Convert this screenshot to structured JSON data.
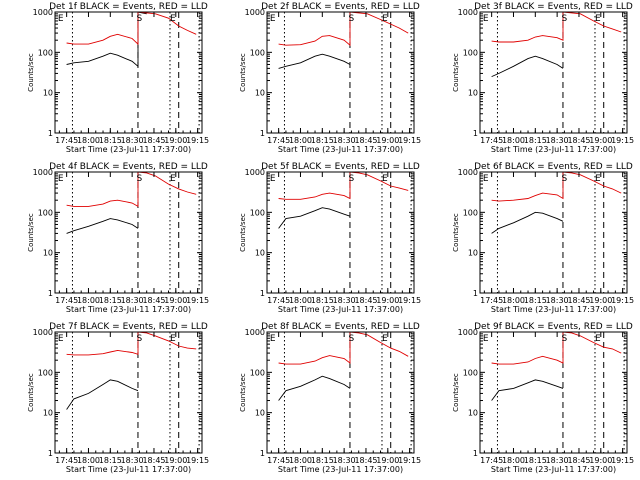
{
  "chart_data": [
    {
      "type": "line",
      "title": "Det 1f BLACK = Events, RED = LLD",
      "xlabel": "Start Time (23-Jul-11 17:37:00)",
      "ylabel": "Counts/sec",
      "yscale": "log",
      "ylim": [
        1,
        1000
      ],
      "x_tick_labels": [
        "17:45",
        "18:00",
        "18:15",
        "18:30",
        "18:45",
        "19:00",
        "19:15"
      ],
      "y_tick_labels": [
        "1",
        "10",
        "100",
        "1000"
      ],
      "markers": [
        "E",
        "S",
        "E"
      ],
      "series": [
        {
          "color": "#000000",
          "x": [
            "17:45",
            "17:50",
            "18:00",
            "18:10",
            "18:15",
            "18:20",
            "18:30",
            "18:34",
            "18:34",
            "18:40"
          ],
          "values": [
            50,
            55,
            60,
            80,
            95,
            85,
            60,
            45,
            1000,
            900
          ]
        },
        {
          "color": "#e00000",
          "x": [
            "17:45",
            "17:50",
            "18:00",
            "18:10",
            "18:15",
            "18:20",
            "18:30",
            "18:34",
            "18:34",
            "18:40",
            "18:46",
            "18:55",
            "19:02",
            "19:08",
            "19:14"
          ],
          "values": [
            170,
            160,
            160,
            200,
            250,
            280,
            220,
            160,
            1000,
            950,
            900,
            700,
            450,
            350,
            280
          ]
        }
      ]
    },
    {
      "type": "line",
      "title": "Det 2f BLACK = Events, RED = LLD",
      "xlabel": "Start Time (23-Jul-11 17:37:00)",
      "ylabel": "Counts/sec",
      "yscale": "log",
      "ylim": [
        1,
        1000
      ],
      "x_tick_labels": [
        "17:45",
        "18:00",
        "18:15",
        "18:30",
        "18:45",
        "19:00",
        "19:15"
      ],
      "y_tick_labels": [
        "1",
        "10",
        "100",
        "1000"
      ],
      "markers": [
        "E",
        "S",
        "E"
      ],
      "series": [
        {
          "color": "#000000",
          "x": [
            "17:45",
            "17:50",
            "18:00",
            "18:10",
            "18:15",
            "18:20",
            "18:30",
            "18:34"
          ],
          "values": [
            40,
            45,
            55,
            80,
            90,
            80,
            60,
            50
          ]
        },
        {
          "color": "#e00000",
          "x": [
            "17:45",
            "17:50",
            "18:00",
            "18:10",
            "18:15",
            "18:20",
            "18:30",
            "18:34",
            "18:34",
            "18:40",
            "18:46",
            "18:55",
            "19:02",
            "19:08",
            "19:14"
          ],
          "values": [
            160,
            150,
            155,
            190,
            250,
            260,
            200,
            150,
            1000,
            950,
            900,
            650,
            500,
            400,
            300
          ]
        }
      ]
    },
    {
      "type": "line",
      "title": "Det 3f BLACK = Events, RED = LLD",
      "xlabel": "Start Time (23-Jul-11 17:37:00)",
      "ylabel": "Counts/sec",
      "yscale": "log",
      "ylim": [
        1,
        1000
      ],
      "x_tick_labels": [
        "17:45",
        "18:00",
        "18:15",
        "18:30",
        "18:45",
        "19:00",
        "19:15"
      ],
      "y_tick_labels": [
        "1",
        "10",
        "100",
        "1000"
      ],
      "markers": [
        "E",
        "S",
        "E"
      ],
      "series": [
        {
          "color": "#000000",
          "x": [
            "17:45",
            "17:50",
            "18:00",
            "18:10",
            "18:15",
            "18:20",
            "18:30",
            "18:34"
          ],
          "values": [
            25,
            30,
            45,
            70,
            80,
            70,
            50,
            40
          ]
        },
        {
          "color": "#e00000",
          "x": [
            "17:45",
            "17:50",
            "18:00",
            "18:10",
            "18:15",
            "18:20",
            "18:30",
            "18:34",
            "18:34",
            "18:40",
            "18:46",
            "18:55",
            "19:02",
            "19:08",
            "19:14"
          ],
          "values": [
            190,
            180,
            180,
            200,
            240,
            260,
            230,
            200,
            1000,
            950,
            900,
            600,
            450,
            380,
            320
          ]
        }
      ]
    },
    {
      "type": "line",
      "title": "Det 4f BLACK = Events, RED = LLD",
      "xlabel": "Start Time (23-Jul-11 17:37:00)",
      "ylabel": "Counts/sec",
      "yscale": "log",
      "ylim": [
        1,
        1000
      ],
      "x_tick_labels": [
        "17:45",
        "18:00",
        "18:15",
        "18:30",
        "18:45",
        "19:00",
        "19:15"
      ],
      "y_tick_labels": [
        "1",
        "10",
        "100",
        "1000"
      ],
      "markers": [
        "E",
        "S",
        "E"
      ],
      "series": [
        {
          "color": "#000000",
          "x": [
            "17:45",
            "17:50",
            "18:00",
            "18:10",
            "18:15",
            "18:20",
            "18:30",
            "18:34"
          ],
          "values": [
            30,
            35,
            45,
            60,
            70,
            65,
            50,
            40
          ]
        },
        {
          "color": "#e00000",
          "x": [
            "17:45",
            "17:50",
            "18:00",
            "18:10",
            "18:15",
            "18:20",
            "18:30",
            "18:34",
            "18:34",
            "18:40",
            "18:46",
            "18:55",
            "19:02",
            "19:08",
            "19:14"
          ],
          "values": [
            150,
            140,
            140,
            160,
            190,
            200,
            170,
            140,
            1000,
            950,
            800,
            500,
            380,
            320,
            280
          ]
        }
      ]
    },
    {
      "type": "line",
      "title": "Det 5f BLACK = Events, RED = LLD",
      "xlabel": "Start Time (23-Jul-11 17:37:00)",
      "ylabel": "Counts/sec",
      "yscale": "log",
      "ylim": [
        1,
        1000
      ],
      "x_tick_labels": [
        "17:45",
        "18:00",
        "18:15",
        "18:30",
        "18:45",
        "19:00",
        "19:15"
      ],
      "y_tick_labels": [
        "1",
        "10",
        "100",
        "1000"
      ],
      "markers": [
        "E",
        "S",
        "E"
      ],
      "series": [
        {
          "color": "#000000",
          "x": [
            "17:45",
            "17:50",
            "18:00",
            "18:10",
            "18:15",
            "18:20",
            "18:30",
            "18:34"
          ],
          "values": [
            40,
            70,
            80,
            110,
            130,
            120,
            90,
            80
          ]
        },
        {
          "color": "#e00000",
          "x": [
            "17:45",
            "17:50",
            "18:00",
            "18:10",
            "18:15",
            "18:20",
            "18:30",
            "18:34",
            "18:34",
            "18:40",
            "18:46",
            "18:55",
            "19:02",
            "19:08",
            "19:14"
          ],
          "values": [
            220,
            210,
            210,
            240,
            280,
            300,
            260,
            220,
            1000,
            950,
            850,
            600,
            450,
            400,
            350
          ]
        }
      ]
    },
    {
      "type": "line",
      "title": "Det 6f BLACK = Events, RED = LLD",
      "xlabel": "Start Time (23-Jul-11 17:37:00)",
      "ylabel": "Counts/sec",
      "yscale": "log",
      "ylim": [
        1,
        1000
      ],
      "x_tick_labels": [
        "17:45",
        "18:00",
        "18:15",
        "18:30",
        "18:45",
        "19:00",
        "19:15"
      ],
      "y_tick_labels": [
        "1",
        "10",
        "100",
        "1000"
      ],
      "markers": [
        "E",
        "S",
        "E"
      ],
      "series": [
        {
          "color": "#000000",
          "x": [
            "17:45",
            "17:50",
            "18:00",
            "18:10",
            "18:15",
            "18:20",
            "18:30",
            "18:34"
          ],
          "values": [
            30,
            40,
            55,
            80,
            100,
            95,
            70,
            60
          ]
        },
        {
          "color": "#e00000",
          "x": [
            "17:45",
            "17:50",
            "18:00",
            "18:10",
            "18:15",
            "18:20",
            "18:30",
            "18:34",
            "18:34",
            "18:40",
            "18:46",
            "18:55",
            "19:02",
            "19:08",
            "19:14"
          ],
          "values": [
            200,
            190,
            200,
            220,
            260,
            300,
            270,
            220,
            1000,
            950,
            850,
            600,
            450,
            380,
            300
          ]
        }
      ]
    },
    {
      "type": "line",
      "title": "Det 7f BLACK = Events, RED = LLD",
      "xlabel": "Start Time (23-Jul-11 17:37:00)",
      "ylabel": "Counts/sec",
      "yscale": "log",
      "ylim": [
        1,
        1000
      ],
      "x_tick_labels": [
        "17:45",
        "18:00",
        "18:15",
        "18:30",
        "18:45",
        "19:00",
        "19:15"
      ],
      "y_tick_labels": [
        "1",
        "10",
        "100",
        "1000"
      ],
      "markers": [
        "E",
        "S",
        "E"
      ],
      "series": [
        {
          "color": "#000000",
          "x": [
            "17:45",
            "17:50",
            "18:00",
            "18:10",
            "18:15",
            "18:20",
            "18:30",
            "18:34"
          ],
          "values": [
            12,
            22,
            30,
            50,
            65,
            60,
            40,
            35
          ]
        },
        {
          "color": "#e00000",
          "x": [
            "17:45",
            "17:50",
            "18:00",
            "18:10",
            "18:15",
            "18:20",
            "18:30",
            "18:34",
            "18:34",
            "18:40",
            "18:46",
            "18:55",
            "19:02",
            "19:08",
            "19:14"
          ],
          "values": [
            280,
            270,
            270,
            290,
            320,
            350,
            310,
            280,
            1000,
            950,
            800,
            600,
            450,
            400,
            380
          ]
        }
      ]
    },
    {
      "type": "line",
      "title": "Det 8f BLACK = Events, RED = LLD",
      "xlabel": "Start Time (23-Jul-11 17:37:00)",
      "ylabel": "Counts/sec",
      "yscale": "log",
      "ylim": [
        1,
        1000
      ],
      "x_tick_labels": [
        "17:45",
        "18:00",
        "18:15",
        "18:30",
        "18:45",
        "19:00",
        "19:15"
      ],
      "y_tick_labels": [
        "1",
        "10",
        "100",
        "1000"
      ],
      "markers": [
        "E",
        "S",
        "E"
      ],
      "series": [
        {
          "color": "#000000",
          "x": [
            "17:45",
            "17:50",
            "18:00",
            "18:10",
            "18:15",
            "18:20",
            "18:30",
            "18:34"
          ],
          "values": [
            20,
            35,
            45,
            65,
            80,
            70,
            50,
            40
          ]
        },
        {
          "color": "#e00000",
          "x": [
            "17:45",
            "17:50",
            "18:00",
            "18:10",
            "18:15",
            "18:20",
            "18:30",
            "18:34",
            "18:34",
            "18:40",
            "18:46",
            "18:55",
            "19:02",
            "19:08",
            "19:14"
          ],
          "values": [
            170,
            160,
            160,
            190,
            230,
            260,
            220,
            170,
            1000,
            950,
            850,
            550,
            400,
            330,
            250
          ]
        }
      ]
    },
    {
      "type": "line",
      "title": "Det 9f BLACK = Events, RED = LLD",
      "xlabel": "Start Time (23-Jul-11 17:37:00)",
      "ylabel": "Counts/sec",
      "yscale": "log",
      "ylim": [
        1,
        1000
      ],
      "x_tick_labels": [
        "17:45",
        "18:00",
        "18:15",
        "18:30",
        "18:45",
        "19:00",
        "19:15"
      ],
      "y_tick_labels": [
        "1",
        "10",
        "100",
        "1000"
      ],
      "markers": [
        "E",
        "S",
        "E"
      ],
      "series": [
        {
          "color": "#000000",
          "x": [
            "17:45",
            "17:50",
            "18:00",
            "18:10",
            "18:15",
            "18:20",
            "18:30",
            "18:34"
          ],
          "values": [
            20,
            35,
            40,
            55,
            65,
            60,
            45,
            40
          ]
        },
        {
          "color": "#e00000",
          "x": [
            "17:45",
            "17:50",
            "18:00",
            "18:10",
            "18:15",
            "18:20",
            "18:30",
            "18:34",
            "18:34",
            "18:40",
            "18:46",
            "18:55",
            "19:02",
            "19:08",
            "19:14"
          ],
          "values": [
            170,
            160,
            160,
            180,
            220,
            250,
            200,
            170,
            1000,
            950,
            800,
            550,
            420,
            380,
            300
          ]
        }
      ]
    }
  ]
}
